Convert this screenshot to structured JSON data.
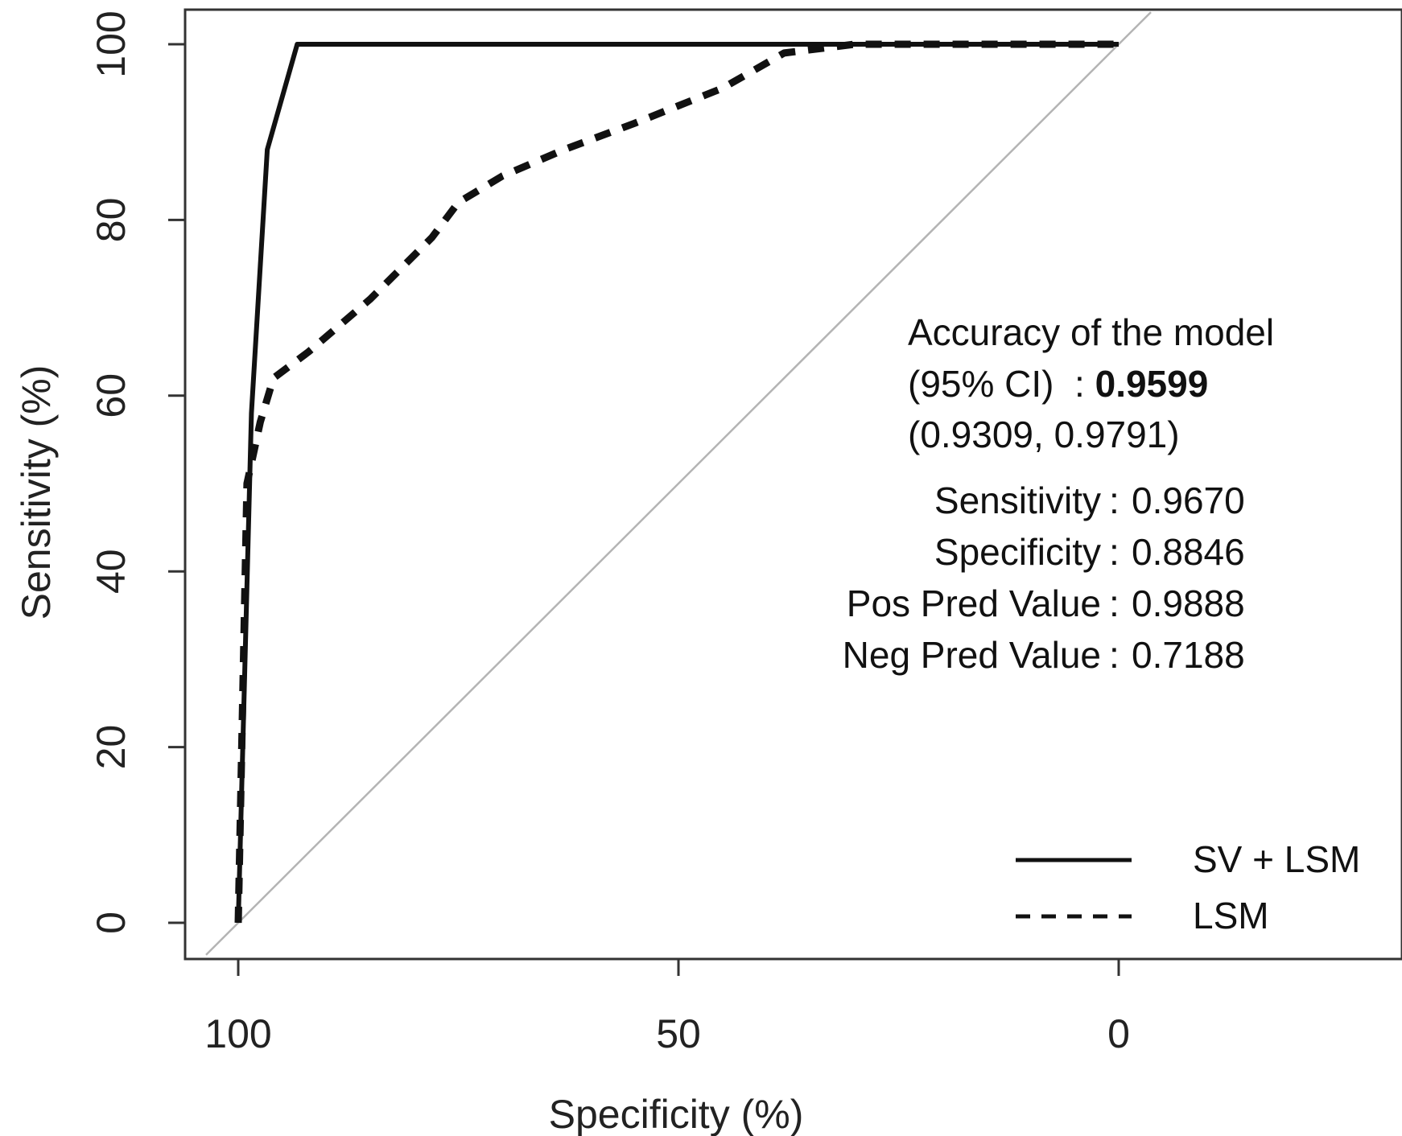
{
  "chart_data": {
    "type": "line",
    "title": "",
    "xlabel": "Specificity (%)",
    "ylabel": "Sensitivity (%)",
    "xlim": [
      100,
      0
    ],
    "ylim": [
      0,
      100
    ],
    "x_ticks": [
      "100",
      "50",
      "0"
    ],
    "y_ticks": [
      "0",
      "20",
      "40",
      "60",
      "80",
      "100"
    ],
    "x_tick_values": [
      100,
      50,
      0
    ],
    "y_tick_values": [
      0,
      20,
      40,
      60,
      80,
      100
    ],
    "grid": false,
    "legend_position": "bottom-right",
    "reference_line": {
      "x": [
        100,
        0
      ],
      "y": [
        0,
        100
      ]
    },
    "series": [
      {
        "name": "SV + LSM",
        "style": "solid",
        "x": [
          100,
          98.5,
          96.7,
          93.3,
          0
        ],
        "y": [
          0,
          58,
          88,
          100,
          100
        ]
      },
      {
        "name": "LSM",
        "style": "dashed",
        "x": [
          100,
          99,
          97.5,
          96,
          92,
          85,
          78,
          75,
          70,
          63,
          55,
          45,
          38,
          30,
          20,
          10,
          0
        ],
        "y": [
          0,
          50,
          57,
          62,
          65,
          71,
          78,
          82,
          85,
          88,
          91,
          95,
          99,
          100,
          100,
          100,
          100
        ]
      }
    ],
    "annotations": {
      "accuracy_line1": "Accuracy of the model",
      "accuracy_line2_label": "(95% CI)  : ",
      "accuracy_value": "0.9599",
      "accuracy_ci": "(0.9309, 0.9791)",
      "metrics": [
        {
          "label": "Sensitivity",
          "value": "0.9670"
        },
        {
          "label": "Specificity",
          "value": "0.8846"
        },
        {
          "label": "Pos Pred Value",
          "value": "0.9888"
        },
        {
          "label": "Neg Pred Value",
          "value": "0.7188"
        }
      ]
    }
  },
  "colors": {
    "line": "#111111",
    "reference": "#b4b4b4",
    "axis": "#333333"
  }
}
